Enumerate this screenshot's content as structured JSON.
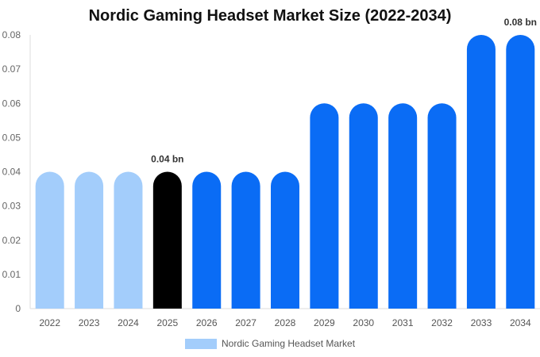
{
  "chart_data": {
    "type": "bar",
    "title": "Nordic Gaming Headset Market Size (2022-2034)",
    "categories": [
      "2022",
      "2023",
      "2024",
      "2025",
      "2026",
      "2027",
      "2028",
      "2029",
      "2030",
      "2031",
      "2032",
      "2033",
      "2034"
    ],
    "series": [
      {
        "name": "Nordic Gaming Headset Market",
        "values": [
          0.04,
          0.04,
          0.04,
          0.04,
          0.04,
          0.04,
          0.04,
          0.06,
          0.06,
          0.06,
          0.06,
          0.08,
          0.08
        ]
      }
    ],
    "bar_colors": [
      "#a3cdfb",
      "#a3cdfb",
      "#a3cdfb",
      "#000000",
      "#0a6cf5",
      "#0a6cf5",
      "#0a6cf5",
      "#0a6cf5",
      "#0a6cf5",
      "#0a6cf5",
      "#0a6cf5",
      "#0a6cf5",
      "#0a6cf5"
    ],
    "data_labels": [
      {
        "category": "2025",
        "text": "0.04 bn"
      },
      {
        "category": "2034",
        "text": "0.08 bn"
      }
    ],
    "yticks": [
      "0",
      "0.01",
      "0.02",
      "0.03",
      "0.04",
      "0.05",
      "0.06",
      "0.07",
      "0.08"
    ],
    "ylim": [
      0,
      0.08
    ],
    "xlabel": "",
    "ylabel": "",
    "grid": false,
    "legend_position": "bottom-center",
    "legend_color": "#a3cdfb"
  }
}
